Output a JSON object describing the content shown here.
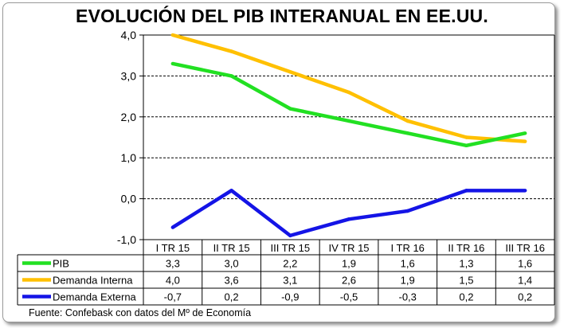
{
  "chart_data": {
    "type": "line",
    "title": "EVOLUCIÓN DEL PIB INTERANUAL  EN EE.UU.",
    "categories": [
      "I TR 15",
      "II TR 15",
      "III TR 15",
      "IV TR 15",
      "I TR 16",
      "II TR 16",
      "III TR 16"
    ],
    "series": [
      {
        "name": "PIB",
        "color": "#22e022",
        "values": [
          3.3,
          3.0,
          2.2,
          1.9,
          1.6,
          1.3,
          1.6
        ],
        "labels": [
          "3,3",
          "3,0",
          "2,2",
          "1,9",
          "1,6",
          "1,3",
          "1,6"
        ]
      },
      {
        "name": "Demanda Interna",
        "color": "#ffc000",
        "values": [
          4.0,
          3.6,
          3.1,
          2.6,
          1.9,
          1.5,
          1.4
        ],
        "labels": [
          "4,0",
          "3,6",
          "3,1",
          "2,6",
          "1,9",
          "1,5",
          "1,4"
        ]
      },
      {
        "name": "Demanda Externa",
        "color": "#1414e6",
        "values": [
          -0.7,
          0.2,
          -0.9,
          -0.5,
          -0.3,
          0.2,
          0.2
        ],
        "labels": [
          "-0,7",
          "0,2",
          "-0,9",
          "-0,5",
          "-0,3",
          "0,2",
          "0,2"
        ]
      }
    ],
    "ylim": [
      -1.0,
      4.0
    ],
    "yticks": [
      4.0,
      3.0,
      2.0,
      1.0,
      0.0,
      -1.0
    ],
    "ytick_labels": [
      "4,0",
      "3,0",
      "2,0",
      "1,0",
      "0,0",
      "-1,0"
    ],
    "grid": "dashed horizontal",
    "legend": "data table below plot",
    "xlabel": "",
    "ylabel": ""
  },
  "source_note": "Fuente: Confebask con datos del Mº de Economía"
}
